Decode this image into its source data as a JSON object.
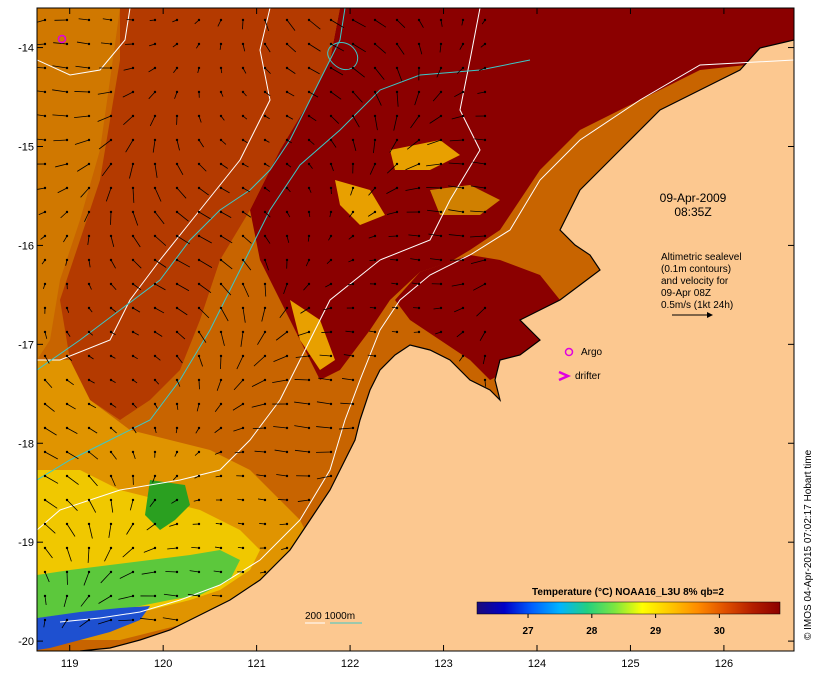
{
  "map": {
    "region": {
      "lon_range": [
        118.65,
        126.75
      ],
      "lat_range": [
        -20.1,
        -13.6
      ]
    },
    "x_ticks": [
      "119",
      "120",
      "121",
      "122",
      "123",
      "124",
      "125",
      "126"
    ],
    "y_ticks": [
      "-14",
      "-15",
      "-16",
      "-17",
      "-18",
      "-19",
      "-20"
    ],
    "date_line1": "09-Apr-2009",
    "date_line2": "08:35Z",
    "altimetry_lines": [
      "Altimetric sealevel",
      "(0.1m contours)",
      "and velocity for",
      "09-Apr 08Z",
      "0.5m/s (1kt 24h)"
    ],
    "legend_argo": "Argo",
    "legend_drifter": "drifter",
    "bathymetry_label": "200  1000m",
    "colorbar": {
      "title": "Temperature (°C) NOAA16_L3U 8% qb=2",
      "range": [
        26.2,
        30.95
      ],
      "ticks": [
        "27",
        "28",
        "29",
        "30"
      ],
      "colors": [
        "#1a0a7a",
        "#0000c8",
        "#0060ff",
        "#00b4ff",
        "#22d080",
        "#7ce640",
        "#ffff00",
        "#ffc800",
        "#ff8c00",
        "#e05000",
        "#b41e00",
        "#8c0000"
      ]
    },
    "credit": "© IMOS 04-Apr-2015 07:02:17 Hobart time",
    "colors": {
      "land": "#fcc890",
      "ocean_warm": "#8b0000",
      "ocean_mid": "#c85a00",
      "ocean_cool": "#e8a000",
      "isobath_200": "#ffffff",
      "isobath_1000": "#3cc8c8",
      "argo": "#e000e0"
    }
  }
}
